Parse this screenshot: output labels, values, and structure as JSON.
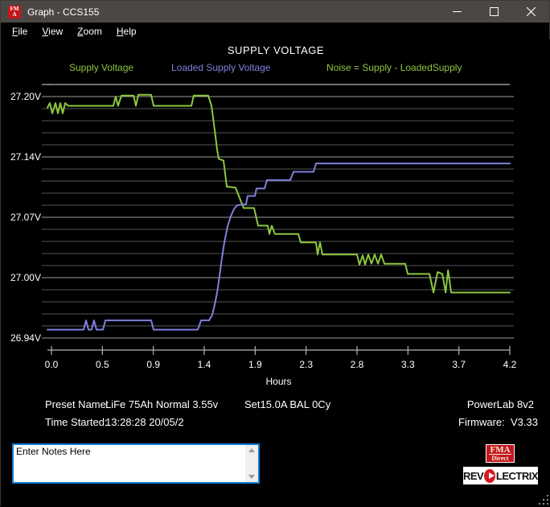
{
  "window": {
    "title": "Graph - CCS155",
    "icon_line1": "FM",
    "icon_line2": "A"
  },
  "menu": {
    "items": [
      "File",
      "View",
      "Zoom",
      "Help"
    ]
  },
  "chart": {
    "title": "SUPPLY VOLTAGE",
    "legend": [
      {
        "label": "Supply Voltage",
        "color": "#8dc63f"
      },
      {
        "label": "Loaded Supply Voltage",
        "color": "#7e80dc"
      },
      {
        "label": "Noise = Supply - LoadedSupply",
        "color": "#8dc63f"
      }
    ],
    "xlabel": "Hours"
  },
  "chart_data": {
    "type": "line",
    "title": "SUPPLY VOLTAGE",
    "xlabel": "Hours",
    "ylabel": "",
    "xlim": [
      0,
      4.2
    ],
    "ylim": [
      26.94,
      27.2
    ],
    "x_tick_labels": [
      "0.0",
      "0.5",
      "0.9",
      "1.4",
      "1.9",
      "2.3",
      "2.8",
      "3.3",
      "3.7",
      "4.2"
    ],
    "y_tick_labels": [
      "27.20V",
      "27.14V",
      "27.07V",
      "27.00V",
      "26.94V"
    ],
    "y_minor_per_major": 5,
    "grid": "horizontal",
    "legend_position": "top",
    "series": [
      {
        "name": "Supply Voltage",
        "color": "#8dc63f",
        "points": [
          [
            -0.037,
            27.188
          ],
          [
            -0.015,
            27.193
          ],
          [
            0.007,
            27.182
          ],
          [
            0.037,
            27.193
          ],
          [
            0.059,
            27.182
          ],
          [
            0.081,
            27.193
          ],
          [
            0.103,
            27.182
          ],
          [
            0.125,
            27.193
          ],
          [
            0.155,
            27.19
          ],
          [
            0.567,
            27.19
          ],
          [
            0.589,
            27.2
          ],
          [
            0.611,
            27.19
          ],
          [
            0.641,
            27.201
          ],
          [
            0.752,
            27.201
          ],
          [
            0.774,
            27.19
          ],
          [
            0.796,
            27.202
          ],
          [
            0.914,
            27.202
          ],
          [
            0.936,
            27.19
          ],
          [
            1.282,
            27.19
          ],
          [
            1.304,
            27.201
          ],
          [
            1.437,
            27.201
          ],
          [
            1.466,
            27.19
          ],
          [
            1.496,
            27.164
          ],
          [
            1.518,
            27.143
          ],
          [
            1.533,
            27.133
          ],
          [
            1.577,
            27.131
          ],
          [
            1.606,
            27.103
          ],
          [
            1.687,
            27.102
          ],
          [
            1.717,
            27.093
          ],
          [
            1.761,
            27.08
          ],
          [
            1.857,
            27.08
          ],
          [
            1.894,
            27.061
          ],
          [
            1.982,
            27.061
          ],
          [
            1.997,
            27.052
          ],
          [
            2.019,
            27.061
          ],
          [
            2.048,
            27.052
          ],
          [
            2.262,
            27.052
          ],
          [
            2.284,
            27.043
          ],
          [
            2.424,
            27.043
          ],
          [
            2.439,
            27.03
          ],
          [
            2.461,
            27.043
          ],
          [
            2.483,
            27.03
          ],
          [
            2.8,
            27.03
          ],
          [
            2.822,
            27.019
          ],
          [
            2.852,
            27.029
          ],
          [
            2.874,
            27.019
          ],
          [
            2.903,
            27.03
          ],
          [
            2.933,
            27.02
          ],
          [
            2.962,
            27.03
          ],
          [
            2.992,
            27.02
          ],
          [
            3.021,
            27.03
          ],
          [
            3.051,
            27.02
          ],
          [
            3.242,
            27.02
          ],
          [
            3.265,
            27.009
          ],
          [
            3.464,
            27.009
          ],
          [
            3.501,
            26.989
          ],
          [
            3.538,
            27.011
          ],
          [
            3.582,
            27.009
          ],
          [
            3.612,
            26.989
          ],
          [
            3.634,
            27.013
          ],
          [
            3.663,
            26.989
          ],
          [
            4.2,
            26.989
          ]
        ]
      },
      {
        "name": "Loaded Supply Voltage",
        "color": "#7e80dc",
        "points": [
          [
            -0.037,
            26.949
          ],
          [
            0.295,
            26.949
          ],
          [
            0.317,
            26.959
          ],
          [
            0.339,
            26.949
          ],
          [
            0.368,
            26.949
          ],
          [
            0.39,
            26.959
          ],
          [
            0.413,
            26.949
          ],
          [
            0.472,
            26.949
          ],
          [
            0.494,
            26.959
          ],
          [
            0.914,
            26.959
          ],
          [
            0.936,
            26.949
          ],
          [
            1.341,
            26.949
          ],
          [
            1.371,
            26.959
          ],
          [
            1.444,
            26.959
          ],
          [
            1.474,
            26.965
          ],
          [
            1.496,
            26.976
          ],
          [
            1.518,
            26.989
          ],
          [
            1.54,
            27.007
          ],
          [
            1.562,
            27.026
          ],
          [
            1.584,
            27.043
          ],
          [
            1.614,
            27.06
          ],
          [
            1.643,
            27.071
          ],
          [
            1.673,
            27.079
          ],
          [
            1.702,
            27.083
          ],
          [
            1.783,
            27.084
          ],
          [
            1.798,
            27.093
          ],
          [
            1.864,
            27.093
          ],
          [
            1.879,
            27.101
          ],
          [
            1.953,
            27.101
          ],
          [
            1.975,
            27.11
          ],
          [
            2.188,
            27.11
          ],
          [
            2.218,
            27.119
          ],
          [
            2.402,
            27.119
          ],
          [
            2.424,
            27.128
          ],
          [
            4.2,
            27.128
          ]
        ]
      }
    ]
  },
  "info": {
    "preset_label": "Preset Name:",
    "preset_value": "LiFe 75Ah Normal 3.55v",
    "set_info": "Set15.0A BAL 0Cy",
    "device": "PowerLab 8v2",
    "time_label": "Time Started:",
    "time_value": "13:28:28  20/05/2",
    "firmware_label": "Firmware:",
    "firmware_value": "V3.33"
  },
  "notes": {
    "text": "Enter Notes Here"
  },
  "logos": {
    "fma_line1": "FMA",
    "fma_line2": "Direct",
    "revo_left": "REV",
    "revo_right": "LECTRIX"
  },
  "colors": {
    "titlebar_bg": "#4a4745",
    "client_bg": "#000000",
    "grid_minor": "#565656",
    "grid_major": "#9c9c9c",
    "axis": "#b2b2b2",
    "notes_border": "#0f7cd5",
    "logo_red": "#c4161c"
  }
}
